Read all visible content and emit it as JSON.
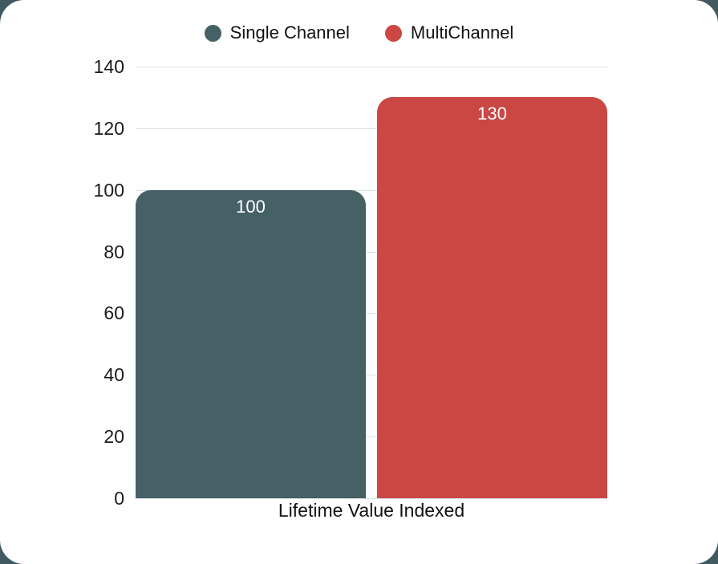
{
  "colors": {
    "frame_background": "#415A60",
    "card_background": "#ffffff",
    "gridline": "#d9dde0",
    "axis_text": "#1a1a1a",
    "bar_label_text": "#ffffff",
    "single_channel": "#456165",
    "multichannel": "#CA4744"
  },
  "chart_data": {
    "type": "bar",
    "title": "",
    "categories": [
      "Lifetime Value Indexed"
    ],
    "series": [
      {
        "name": "Single Channel",
        "color": "#456165",
        "values": [
          100
        ]
      },
      {
        "name": "MultiChannel",
        "color": "#CA4744",
        "values": [
          130
        ]
      }
    ],
    "xlabel": "Lifetime Value Indexed",
    "ylabel": "",
    "ylim": [
      0,
      140
    ],
    "yticks": [
      0,
      20,
      40,
      60,
      80,
      100,
      120,
      140
    ],
    "grid": true,
    "legend_position": "top",
    "bar_corner_rounded_top": true
  }
}
